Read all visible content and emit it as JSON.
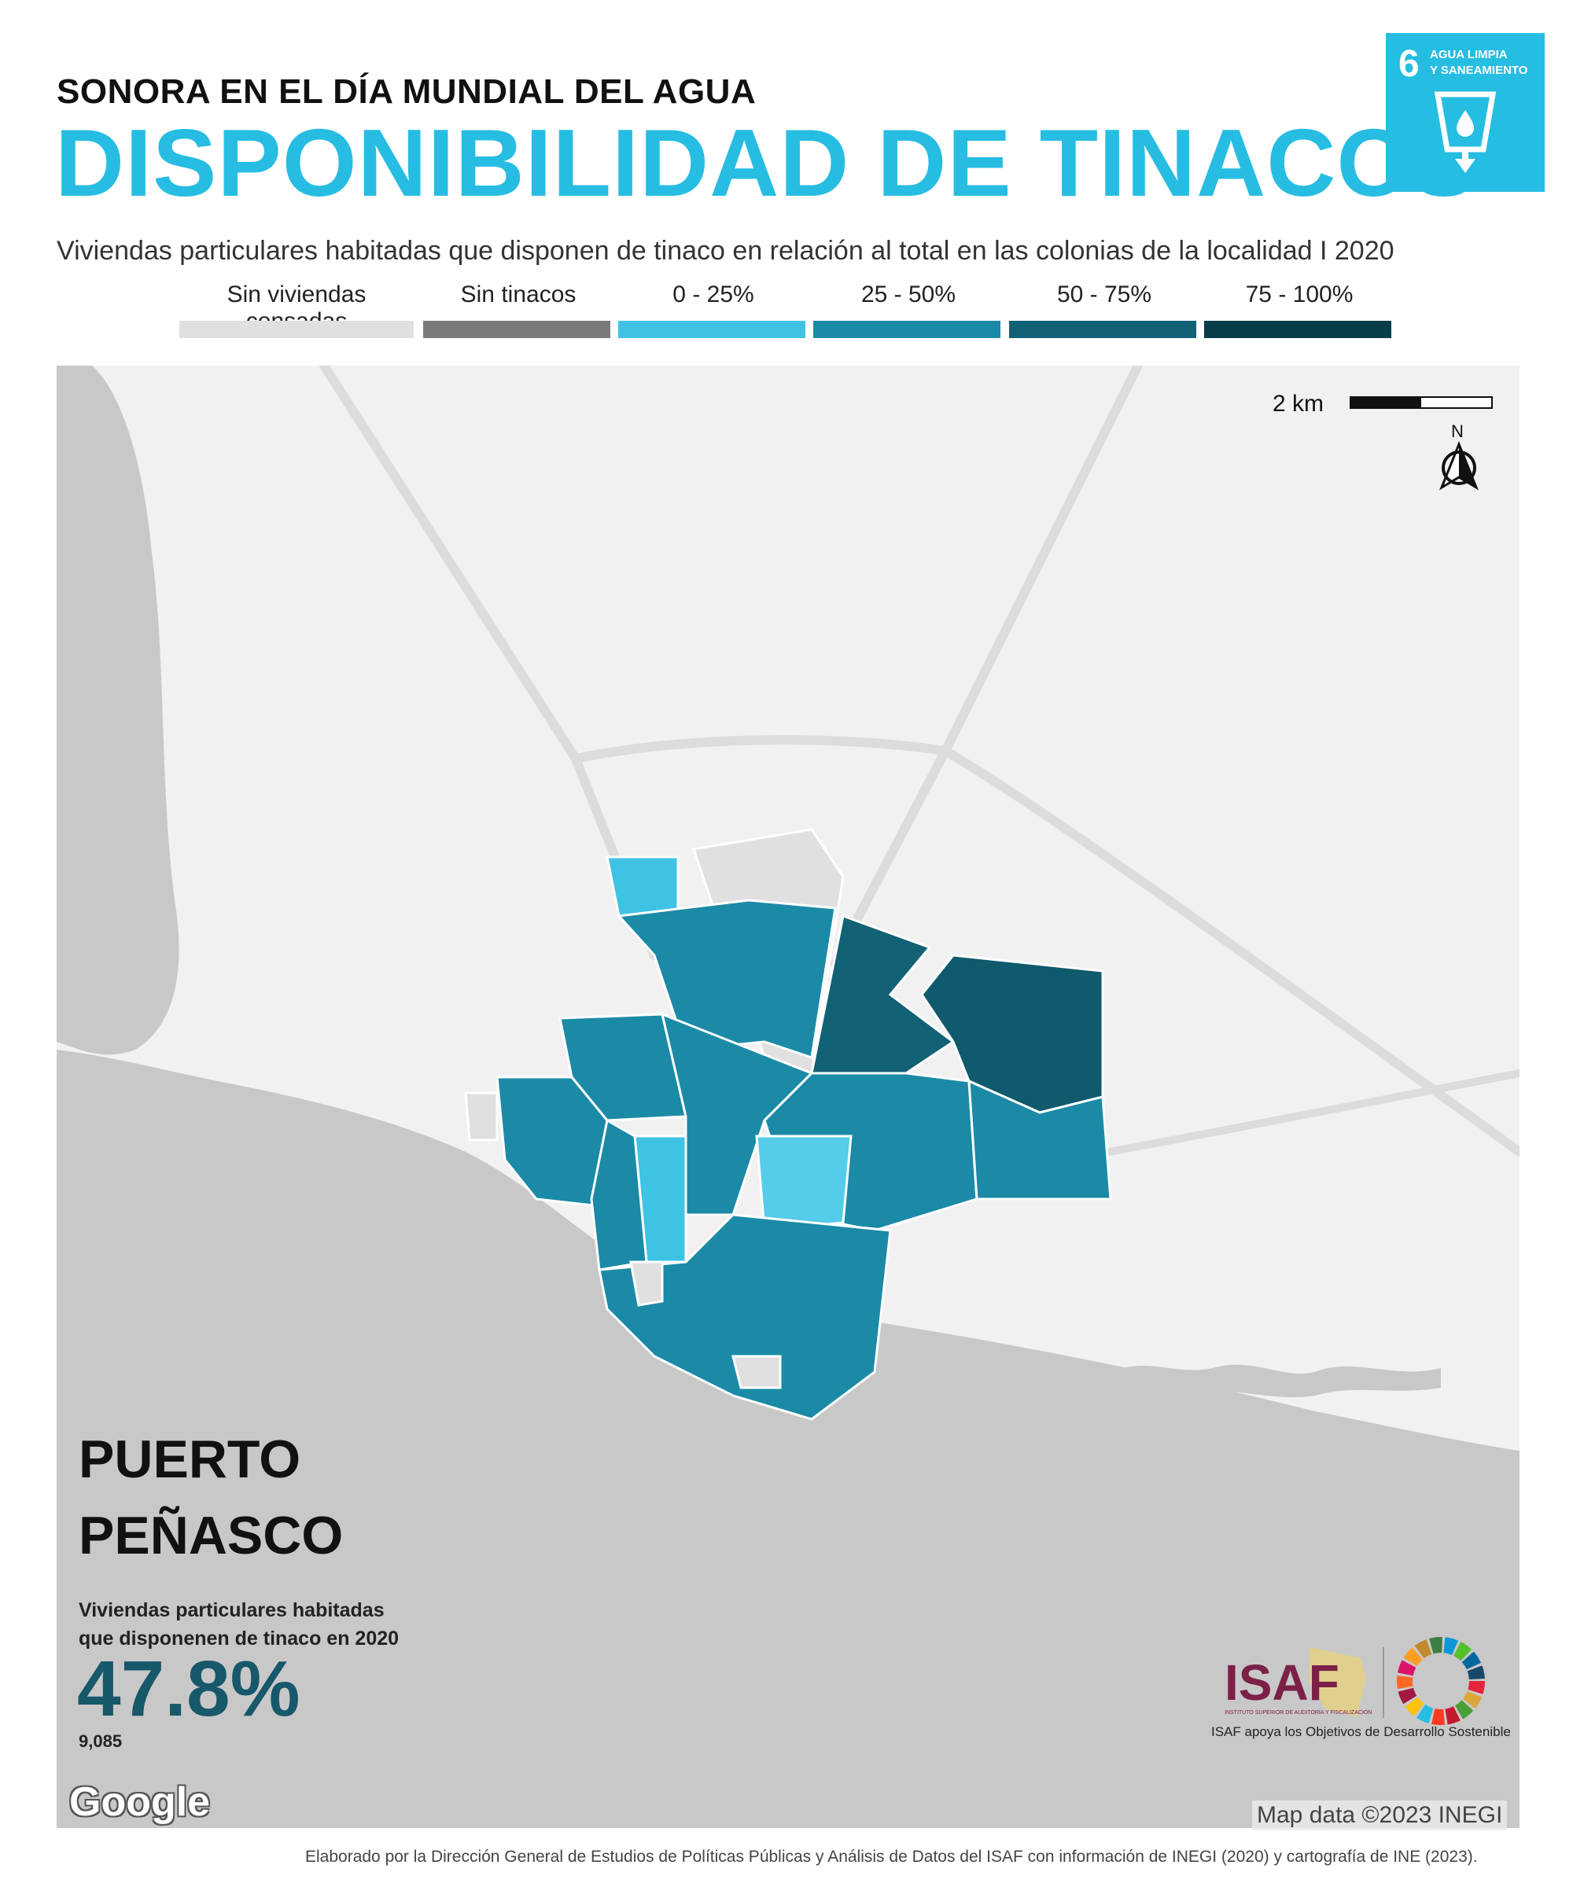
{
  "header": {
    "kicker": "SONORA EN EL DÍA MUNDIAL DEL AGUA",
    "title": "DISPONIBILIDAD DE TINACOS",
    "subtitle": "Viviendas particulares habitadas que disponen de tinaco en relación al total en las colonias de la localidad I 2020"
  },
  "sdg_badge": {
    "number": "6",
    "label_line1": "AGUA LIMPIA",
    "label_line2": "Y SANEAMIENTO",
    "color": "#26bde2"
  },
  "legend": {
    "items": [
      {
        "label": "Sin viviendas censadas",
        "color": "#e0e0e0"
      },
      {
        "label": "Sin tinacos",
        "color": "#7a7a7a"
      },
      {
        "label": "0 - 25%",
        "color": "#3ec3e4"
      },
      {
        "label": "25 - 50%",
        "color": "#1b8aa6"
      },
      {
        "label": "50 - 75%",
        "color": "#126175"
      },
      {
        "label": "75 - 100%",
        "color": "#083c49"
      }
    ]
  },
  "map": {
    "scale_label": "2 km",
    "north_label": "N",
    "place_line1": "PUERTO",
    "place_line2": "PEÑASCO",
    "stat_caption_line1": "Viviendas particulares habitadas",
    "stat_caption_line2": "que disponenen de tinaco en 2020",
    "stat_value": "47.8%",
    "stat_count": "9,085",
    "google_logo": "Google",
    "attribution": "Map data ©2023 INEGI",
    "colors": {
      "land": "#f1f1f1",
      "sea": "#c8c8c8",
      "road": "#dcdcdc"
    }
  },
  "isaf": {
    "logo_text": "ISAF",
    "logo_subtext": "INSTITUTO SUPERIOR DE AUDITORÍA Y FISCALIZACIÓN",
    "tagline": "ISAF apoya los Objetivos de Desarrollo Sostenible",
    "brand_color": "#7b2048"
  },
  "footer": {
    "text": "Elaborado por la Dirección General de Estudios de Políticas Públicas y Análisis de Datos del ISAF con información de INEGI (2020) y cartografía de INE (2023)."
  }
}
